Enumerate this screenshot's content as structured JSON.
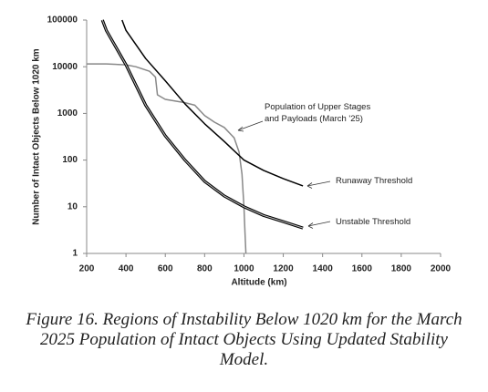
{
  "chart_data": {
    "type": "line",
    "caption": "Figure 16. Regions of Instability Below 1020 km for the March 2025 Population of Intact Objects Using Updated Stability Model.",
    "xlabel": "Altitude (km)",
    "ylabel": "Number of Intact Objects Below 1020 km",
    "xlim": [
      200,
      2000
    ],
    "xticks": [
      200,
      400,
      600,
      800,
      1000,
      1200,
      1400,
      1600,
      1800,
      2000
    ],
    "ylim": [
      1,
      100000
    ],
    "yticks": [
      1,
      10,
      100,
      1000,
      10000,
      100000
    ],
    "log_y": true,
    "grid": false,
    "series": [
      {
        "name": "Population of Upper Stages and Payloads (March '25)",
        "color": "#888888",
        "style": "single",
        "x": [
          200,
          300,
          400,
          450,
          520,
          550,
          560,
          600,
          700,
          750,
          800,
          850,
          900,
          950,
          975,
          990,
          1000,
          1005,
          1010
        ],
        "values": [
          11500,
          11500,
          11000,
          10000,
          8000,
          6000,
          2500,
          2000,
          1700,
          1500,
          900,
          650,
          500,
          300,
          150,
          50,
          10,
          3,
          1
        ]
      },
      {
        "name": "Runaway Threshold",
        "color": "#000000",
        "style": "single",
        "x": [
          380,
          400,
          500,
          600,
          700,
          800,
          900,
          1000,
          1100,
          1200,
          1300
        ],
        "values": [
          100000,
          60000,
          15000,
          5000,
          1600,
          600,
          250,
          100,
          60,
          40,
          28
        ]
      },
      {
        "name": "Unstable Threshold",
        "color": "#000000",
        "style": "double",
        "x": [
          280,
          300,
          400,
          500,
          600,
          700,
          800,
          900,
          1000,
          1100,
          1200,
          1300
        ],
        "values": [
          100000,
          60000,
          11000,
          1500,
          330,
          100,
          35,
          17,
          10,
          6.5,
          4.8,
          3.5
        ]
      }
    ]
  }
}
